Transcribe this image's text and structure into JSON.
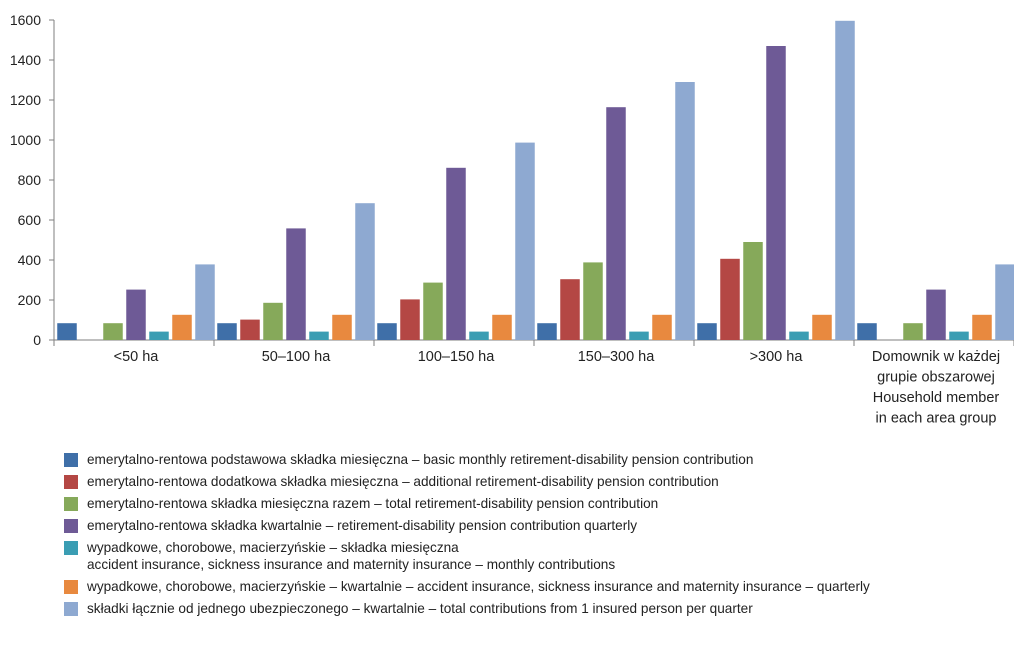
{
  "chart_data": {
    "type": "bar",
    "categories": [
      [
        "<50 ha"
      ],
      [
        "50–100 ha"
      ],
      [
        "100–150 ha"
      ],
      [
        "150–300 ha"
      ],
      [
        ">300 ha"
      ],
      [
        "Domownik w każdej",
        "grupie obszarowej",
        "Household member",
        "in each area group"
      ]
    ],
    "series": [
      {
        "name": "emerytalno-rentowa podstawowa składka miesięczna – basic monthly retirement-disability pension contribution",
        "color": "#3f6fa8",
        "values": [
          84,
          84,
          84,
          84,
          84,
          84
        ]
      },
      {
        "name": "emerytalno-rentowa dodatkowa składka miesięczna – additional retirement-disability pension contribution",
        "color": "#b44744",
        "values": [
          0,
          102,
          203,
          304,
          406,
          0
        ]
      },
      {
        "name": "emerytalno-rentowa składka miesięczna razem – total retirement-disability pension contribution",
        "color": "#86a95a",
        "values": [
          84,
          186,
          287,
          388,
          490,
          84
        ]
      },
      {
        "name": "emerytalno-rentowa składka kwartalnie – retirement-disability pension contribution quarterly",
        "color": "#6e5a96",
        "values": [
          252,
          558,
          861,
          1164,
          1470,
          252
        ]
      },
      {
        "name": "wypadkowe, chorobowe, macierzyńskie – składka miesięczna",
        "name_line2": "accident insurance, sickness insurance and maternity insurance – monthly contributions",
        "color": "#3a9db3",
        "values": [
          42,
          42,
          42,
          42,
          42,
          42
        ]
      },
      {
        "name": "wypadkowe, chorobowe, macierzyńskie – kwartalnie – accident insurance, sickness insurance and maternity insurance – quarterly",
        "color": "#e8893f",
        "values": [
          126,
          126,
          126,
          126,
          126,
          126
        ]
      },
      {
        "name": "składki łącznie od jednego ubezpieczonego – kwartalnie – total contributions from 1 insured person per quarter",
        "color": "#8ea9d1",
        "values": [
          378,
          684,
          987,
          1290,
          1596,
          378
        ]
      }
    ],
    "ylim": [
      0,
      1600
    ],
    "yticks": [
      "0",
      "200",
      "400",
      "600",
      "800",
      "1000",
      "1200",
      "1400",
      "1600"
    ],
    "grid": false,
    "legend_position": "bottom"
  }
}
